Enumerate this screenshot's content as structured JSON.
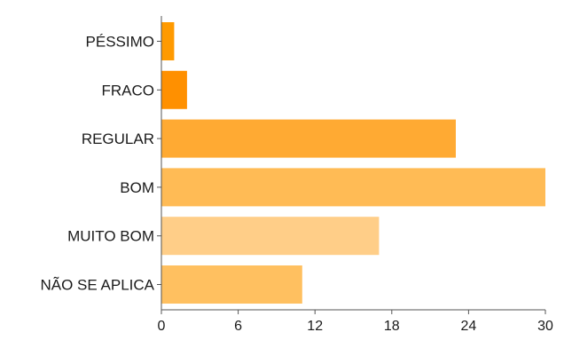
{
  "chart_data": {
    "type": "bar",
    "orientation": "horizontal",
    "title": "",
    "xlabel": "",
    "ylabel": "",
    "categories": [
      "PÉSSIMO",
      "FRACO",
      "REGULAR",
      "BOM",
      "MUITO BOM",
      "NÃO SE APLICA"
    ],
    "values": [
      1,
      2,
      23,
      30,
      17,
      11
    ],
    "colors": [
      "#FF9A00",
      "#FF9000",
      "#FFAA33",
      "#FFBB55",
      "#FFCE88",
      "#FFC060"
    ],
    "xlim": [
      0,
      30
    ],
    "xticks": [
      0,
      6,
      12,
      18,
      24,
      30
    ],
    "xtick_labels": [
      "0",
      "6",
      "12",
      "18",
      "24",
      "30"
    ],
    "grid": false,
    "legend": "none"
  }
}
